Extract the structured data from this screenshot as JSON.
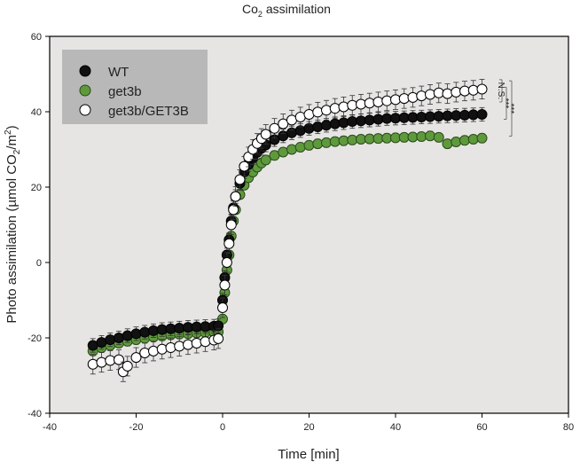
{
  "chart_data": {
    "type": "scatter",
    "title_main": "Co",
    "title_sub": "2",
    "title_rest": " assimilation",
    "xlabel": "Time [min]",
    "ylabel_main": "Photo assimilation (µmol CO",
    "ylabel_sub": "2",
    "ylabel_mid": "/m",
    "ylabel_sup": "2",
    "ylabel_end": ")",
    "xlim": [
      -40,
      80
    ],
    "ylim": [
      -40,
      60
    ],
    "x_ticks": [
      -40,
      -20,
      0,
      20,
      40,
      60,
      80
    ],
    "y_ticks": [
      -40,
      -20,
      0,
      20,
      40,
      60
    ],
    "x_tick_labels": [
      "-40",
      "-20",
      "0",
      "20",
      "40",
      "60",
      "80"
    ],
    "y_tick_labels": [
      "-40",
      "-20",
      "0",
      "20",
      "40",
      "60"
    ],
    "plot_background": "#e6e5e3",
    "legend_position": "top-left",
    "legend_background": "#b8b8b8",
    "series": [
      {
        "name": "WT",
        "marker_fill": "#111111",
        "marker_stroke": "#000000",
        "error_bar": 1.8,
        "points": [
          [
            -30,
            -22
          ],
          [
            -28,
            -21.2
          ],
          [
            -26,
            -20.5
          ],
          [
            -24,
            -20
          ],
          [
            -22,
            -19.4
          ],
          [
            -20,
            -18.9
          ],
          [
            -18,
            -18.5
          ],
          [
            -16,
            -18.1
          ],
          [
            -14,
            -17.8
          ],
          [
            -12,
            -17.6
          ],
          [
            -10,
            -17.4
          ],
          [
            -8,
            -17.2
          ],
          [
            -6,
            -17.1
          ],
          [
            -4,
            -17
          ],
          [
            -2,
            -16.9
          ],
          [
            -1,
            -16.8
          ],
          [
            0,
            -10
          ],
          [
            0.5,
            -4
          ],
          [
            1,
            2
          ],
          [
            1.5,
            6
          ],
          [
            2,
            11
          ],
          [
            2.5,
            14.5
          ],
          [
            3,
            17.5
          ],
          [
            4,
            21
          ],
          [
            5,
            24
          ],
          [
            6,
            26
          ],
          [
            7,
            27.8
          ],
          [
            8,
            29.2
          ],
          [
            9,
            30.3
          ],
          [
            10,
            31.2
          ],
          [
            12,
            32.6
          ],
          [
            14,
            33.6
          ],
          [
            16,
            34.4
          ],
          [
            18,
            35
          ],
          [
            20,
            35.6
          ],
          [
            22,
            36
          ],
          [
            24,
            36.4
          ],
          [
            26,
            36.8
          ],
          [
            28,
            37.1
          ],
          [
            30,
            37.4
          ],
          [
            32,
            37.6
          ],
          [
            34,
            37.8
          ],
          [
            36,
            38
          ],
          [
            38,
            38.2
          ],
          [
            40,
            38.3
          ],
          [
            42,
            38.4
          ],
          [
            44,
            38.5
          ],
          [
            46,
            38.6
          ],
          [
            48,
            38.7
          ],
          [
            50,
            38.8
          ],
          [
            52,
            38.9
          ],
          [
            54,
            39
          ],
          [
            56,
            39.1
          ],
          [
            58,
            39.2
          ],
          [
            60,
            39.3
          ]
        ]
      },
      {
        "name": "get3b",
        "marker_fill": "#5e9a3c",
        "marker_stroke": "#2d4a1c",
        "error_bar": 1.2,
        "points": [
          [
            -30,
            -23.5
          ],
          [
            -28,
            -22.6
          ],
          [
            -26,
            -22
          ],
          [
            -24,
            -21.4
          ],
          [
            -22,
            -20.9
          ],
          [
            -20,
            -20.5
          ],
          [
            -18,
            -20.1
          ],
          [
            -16,
            -19.8
          ],
          [
            -14,
            -19.5
          ],
          [
            -12,
            -19.2
          ],
          [
            -10,
            -19
          ],
          [
            -8,
            -18.9
          ],
          [
            -6,
            -18.7
          ],
          [
            -4,
            -18.6
          ],
          [
            -2,
            -18.5
          ],
          [
            -1,
            -18.4
          ],
          [
            0,
            -15
          ],
          [
            0.5,
            -8
          ],
          [
            1,
            -2
          ],
          [
            1.5,
            2
          ],
          [
            2,
            7
          ],
          [
            2.5,
            11
          ],
          [
            3,
            14
          ],
          [
            4,
            18
          ],
          [
            5,
            20.5
          ],
          [
            6,
            22.5
          ],
          [
            7,
            24
          ],
          [
            8,
            25.3
          ],
          [
            9,
            26.4
          ],
          [
            10,
            27.2
          ],
          [
            12,
            28.4
          ],
          [
            14,
            29.3
          ],
          [
            16,
            30
          ],
          [
            18,
            30.6
          ],
          [
            20,
            31.1
          ],
          [
            22,
            31.5
          ],
          [
            24,
            31.8
          ],
          [
            26,
            32.1
          ],
          [
            28,
            32.3
          ],
          [
            30,
            32.5
          ],
          [
            32,
            32.7
          ],
          [
            34,
            32.8
          ],
          [
            36,
            32.9
          ],
          [
            38,
            33
          ],
          [
            40,
            33.1
          ],
          [
            42,
            33.2
          ],
          [
            44,
            33.3
          ],
          [
            46,
            33.4
          ],
          [
            48,
            33.6
          ],
          [
            50,
            33.2
          ],
          [
            52,
            31.5
          ],
          [
            54,
            32
          ],
          [
            56,
            32.4
          ],
          [
            58,
            32.7
          ],
          [
            60,
            33
          ]
        ]
      },
      {
        "name": "get3b/GET3B",
        "marker_fill": "#ffffff",
        "marker_stroke": "#000000",
        "error_bar": 2.6,
        "points": [
          [
            -30,
            -27
          ],
          [
            -28,
            -26.5
          ],
          [
            -26,
            -26
          ],
          [
            -24,
            -25.8
          ],
          [
            -23,
            -29
          ],
          [
            -22,
            -27.5
          ],
          [
            -20,
            -25.2
          ],
          [
            -18,
            -24
          ],
          [
            -16,
            -23.5
          ],
          [
            -14,
            -23
          ],
          [
            -12,
            -22.6
          ],
          [
            -10,
            -22.2
          ],
          [
            -8,
            -21.8
          ],
          [
            -6,
            -21.4
          ],
          [
            -4,
            -21
          ],
          [
            -2,
            -20.6
          ],
          [
            -1,
            -20.2
          ],
          [
            0,
            -12
          ],
          [
            0.5,
            -6
          ],
          [
            1,
            0
          ],
          [
            1.5,
            5
          ],
          [
            2,
            10
          ],
          [
            2.5,
            14
          ],
          [
            3,
            17.5
          ],
          [
            4,
            22
          ],
          [
            5,
            25.5
          ],
          [
            6,
            28
          ],
          [
            7,
            30
          ],
          [
            8,
            31.6
          ],
          [
            9,
            32.9
          ],
          [
            10,
            34
          ],
          [
            12,
            35.6
          ],
          [
            14,
            36.8
          ],
          [
            16,
            37.8
          ],
          [
            18,
            38.6
          ],
          [
            20,
            39.3
          ],
          [
            22,
            39.9
          ],
          [
            24,
            40.4
          ],
          [
            26,
            40.9
          ],
          [
            28,
            41.3
          ],
          [
            30,
            41.7
          ],
          [
            32,
            42
          ],
          [
            34,
            42.3
          ],
          [
            36,
            42.6
          ],
          [
            38,
            42.9
          ],
          [
            40,
            43.2
          ],
          [
            42,
            43.5
          ],
          [
            44,
            43.8
          ],
          [
            46,
            44.2
          ],
          [
            48,
            44.6
          ],
          [
            50,
            45
          ],
          [
            52,
            44.8
          ],
          [
            54,
            45.2
          ],
          [
            56,
            45.5
          ],
          [
            58,
            45.7
          ],
          [
            60,
            46
          ]
        ]
      }
    ],
    "annotations": [
      {
        "text": "N.S.",
        "y_from": 42.6,
        "y_to": 48.5
      },
      {
        "text": "***",
        "y_from": 38,
        "y_to": 46.5
      },
      {
        "text": "***",
        "y_from": 33.5,
        "y_to": 48.2
      }
    ]
  }
}
